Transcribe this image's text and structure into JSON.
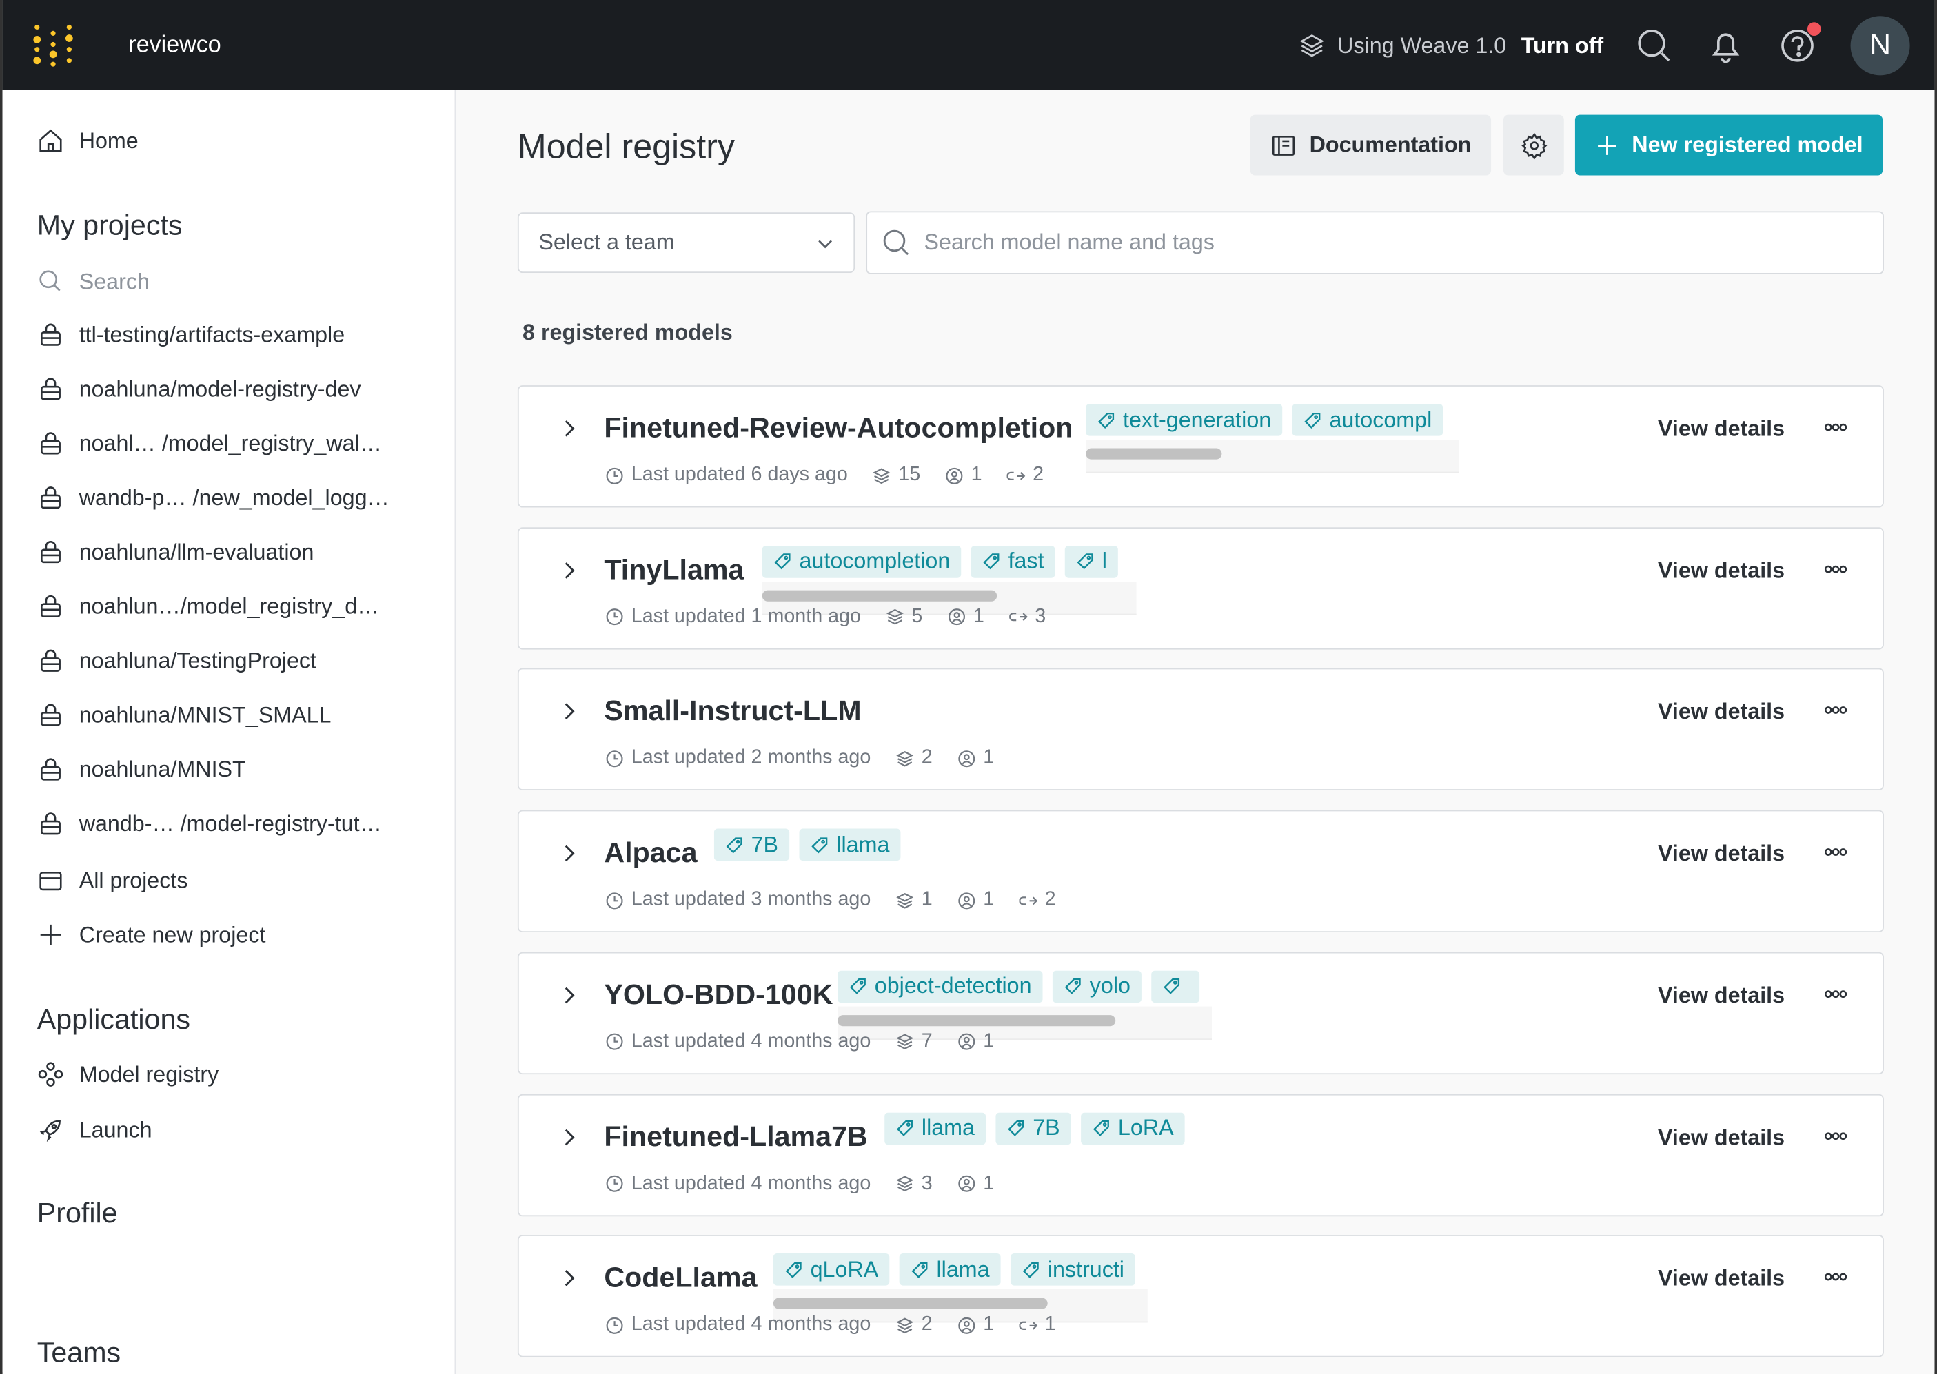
{
  "topbar": {
    "brand": "reviewco",
    "weave_label": "Using Weave 1.0",
    "turn_off": "Turn off",
    "avatar_initial": "N"
  },
  "sidebar": {
    "home": "Home",
    "my_projects": "My projects",
    "search_placeholder": "Search",
    "projects": [
      "ttl-testing/artifacts-example",
      "noahluna/model-registry-dev",
      "noahl… /model_registry_wal…",
      "wandb-p… /new_model_logg…",
      "noahluna/llm-evaluation",
      "noahlun…/model_registry_d…",
      "noahluna/TestingProject",
      "noahluna/MNIST_SMALL",
      "noahluna/MNIST",
      "wandb-… /model-registry-tut…"
    ],
    "all_projects": "All projects",
    "create_project": "Create new project",
    "applications": "Applications",
    "apps": [
      "Model registry",
      "Launch"
    ],
    "profile": "Profile",
    "teams": "Teams"
  },
  "main": {
    "title": "Model registry",
    "documentation": "Documentation",
    "new_model": "New registered model",
    "team_select": "Select a team",
    "search_placeholder": "Search model name and tags",
    "count_label": "8 registered models",
    "view_details": "View details",
    "models": [
      {
        "name": "Finetuned-Review-Autocompletion",
        "tags": [
          "text-generation",
          "autocompl"
        ],
        "updated": "Last updated 6 days ago",
        "versions": "15",
        "users": "1",
        "links": "2"
      },
      {
        "name": "TinyLlama",
        "tags": [
          "autocompletion",
          "fast",
          "l"
        ],
        "updated": "Last updated 1 month ago",
        "versions": "5",
        "users": "1",
        "links": "3"
      },
      {
        "name": "Small-Instruct-LLM",
        "tags": [],
        "updated": "Last updated 2 months ago",
        "versions": "2",
        "users": "1",
        "links": null
      },
      {
        "name": "Alpaca",
        "tags": [
          "7B",
          "llama"
        ],
        "updated": "Last updated 3 months ago",
        "versions": "1",
        "users": "1",
        "links": "2"
      },
      {
        "name": "YOLO-BDD-100K",
        "tags": [
          "object-detection",
          "yolo",
          ""
        ],
        "updated": "Last updated 4 months ago",
        "versions": "7",
        "users": "1",
        "links": null
      },
      {
        "name": "Finetuned-Llama7B",
        "tags": [
          "llama",
          "7B",
          "LoRA"
        ],
        "updated": "Last updated 4 months ago",
        "versions": "3",
        "users": "1",
        "links": null
      },
      {
        "name": "CodeLlama",
        "tags": [
          "qLoRA",
          "llama",
          "instructi"
        ],
        "updated": "Last updated 4 months ago",
        "versions": "2",
        "users": "1",
        "links": "1"
      }
    ]
  },
  "colors": {
    "topbar": "#1a1d21",
    "accent": "#13a3b6",
    "tag_bg": "#e1f1f2",
    "tag_text": "#0f8a99",
    "logo": "#fcc62a"
  }
}
